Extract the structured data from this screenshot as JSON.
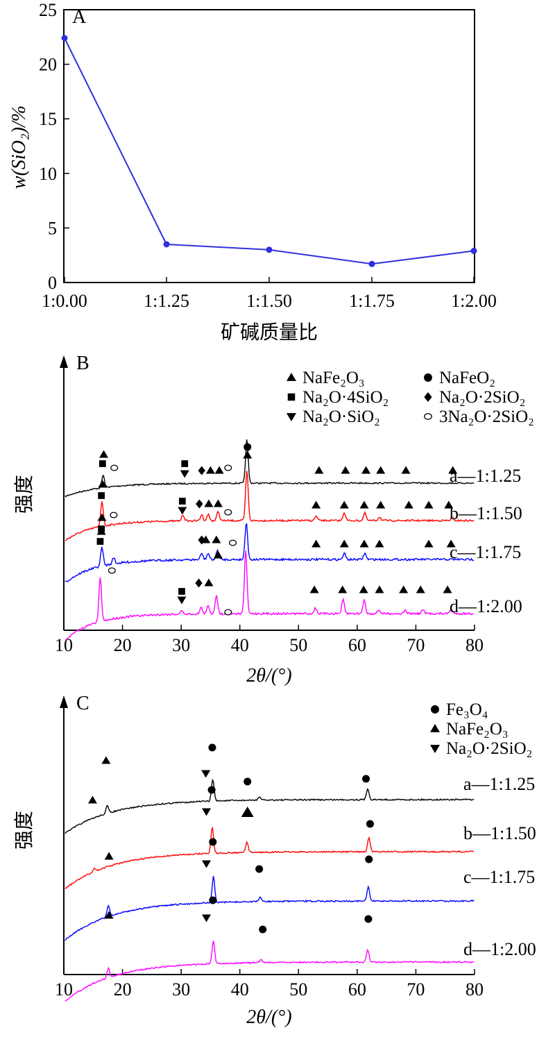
{
  "colors": {
    "black": "#000000",
    "red": "#ff0000",
    "blue": "#0000ff",
    "magenta": "#ff00ff",
    "line_a": "#2f2fe0"
  },
  "chart_data": [
    {
      "type": "line",
      "panel": "A",
      "xlabel": "矿碱质量比",
      "ylabel": "w(SiO₂)/%",
      "categories": [
        "1:0.00",
        "1:1.25",
        "1:1.50",
        "1:1.75",
        "1:2.00"
      ],
      "values": [
        22.4,
        3.5,
        3.0,
        1.7,
        2.9
      ],
      "ylim": [
        0,
        25
      ],
      "yticks": [
        "0",
        "5",
        "10",
        "15",
        "20",
        "25"
      ],
      "grid": false
    },
    {
      "type": "line",
      "panel": "B",
      "xlabel": "2θ/(°)",
      "ylabel": "强度",
      "xlim": [
        10,
        80
      ],
      "xticks": [
        "10",
        "20",
        "30",
        "40",
        "50",
        "60",
        "70",
        "80"
      ],
      "legend": [
        {
          "symbol": "triangle",
          "label": "NaFe₂O₃"
        },
        {
          "symbol": "circle",
          "label": "NaFeO₂"
        },
        {
          "symbol": "square",
          "label": "Na₂O·4SiO₂"
        },
        {
          "symbol": "diamond",
          "label": "Na₂O·2SiO₂"
        },
        {
          "symbol": "triangle-down",
          "label": "Na₂O·SiO₂"
        },
        {
          "symbol": "open-circle",
          "label": "3Na₂O·2SiO₂"
        }
      ],
      "series": [
        {
          "name": "a—1:1.25",
          "color": "#000000",
          "baseline": 0.0,
          "peaks": [
            [
              16.7,
              2
            ],
            [
              41.2,
              7
            ]
          ]
        },
        {
          "name": "b—1:1.50",
          "color": "#ff0000",
          "baseline": 0.0,
          "peaks": [
            [
              16.5,
              4
            ],
            [
              30.3,
              1
            ],
            [
              33.5,
              1
            ],
            [
              34.6,
              1
            ],
            [
              36.3,
              1.5
            ],
            [
              41.2,
              8
            ],
            [
              53.0,
              0.7
            ],
            [
              57.8,
              1.3
            ],
            [
              61.3,
              1.2
            ],
            [
              63.8,
              0.6
            ],
            [
              76.2,
              0.5
            ]
          ]
        },
        {
          "name": "c—1:1.75",
          "color": "#0000ff",
          "baseline": 0.0,
          "peaks": [
            [
              16.5,
              3
            ],
            [
              18.5,
              1
            ],
            [
              33.5,
              1
            ],
            [
              34.6,
              1
            ],
            [
              36.2,
              1.5
            ],
            [
              41.1,
              6
            ],
            [
              57.8,
              1
            ],
            [
              61.3,
              1
            ]
          ]
        },
        {
          "name": "d—1:2.00",
          "color": "#ff00ff",
          "baseline": 0.0,
          "peaks": [
            [
              16.2,
              7
            ],
            [
              30.1,
              0.5
            ],
            [
              33.4,
              1
            ],
            [
              34.6,
              1.3
            ],
            [
              36.0,
              3
            ],
            [
              41.0,
              10
            ],
            [
              52.9,
              0.9
            ],
            [
              57.6,
              2.2
            ],
            [
              61.2,
              2.2
            ],
            [
              63.7,
              0.6
            ],
            [
              68.2,
              0.5
            ],
            [
              71.2,
              0.6
            ],
            [
              76.0,
              0.7
            ]
          ]
        }
      ],
      "markers": [
        {
          "series": 0,
          "items": [
            [
              "triangle",
              16.8
            ],
            [
              "square",
              16.6
            ],
            [
              "open-circle",
              18.6
            ],
            [
              "square",
              30.6
            ],
            [
              "triangle-down",
              30.6
            ],
            [
              "diamond",
              33.5
            ],
            [
              "triangle",
              35.0
            ],
            [
              "triangle",
              36.5
            ],
            [
              "open-circle",
              38.0
            ],
            [
              "circle",
              41.3
            ],
            [
              "triangle",
              41.3
            ],
            [
              "triangle",
              53.5
            ],
            [
              "triangle",
              58.0
            ],
            [
              "triangle",
              61.5
            ],
            [
              "triangle",
              64.0
            ],
            [
              "triangle",
              68.3
            ],
            [
              "triangle",
              76.3
            ]
          ]
        },
        {
          "series": 1,
          "items": [
            [
              "triangle",
              16.6
            ],
            [
              "square",
              16.4
            ],
            [
              "square",
              30.2
            ],
            [
              "triangle-down",
              30.2
            ],
            [
              "diamond",
              33.1
            ],
            [
              "triangle",
              34.7
            ],
            [
              "triangle",
              36.3
            ],
            [
              "open-circle",
              38.0
            ],
            [
              "triangle",
              53.0
            ],
            [
              "triangle",
              57.8
            ],
            [
              "triangle",
              61.2
            ],
            [
              "triangle",
              64.0
            ],
            [
              "triangle",
              68.8
            ],
            [
              "triangle",
              72.2
            ],
            [
              "triangle",
              75.6
            ]
          ]
        },
        {
          "series": 2,
          "items": [
            [
              "triangle",
              16.5
            ],
            [
              "square",
              16.4
            ],
            [
              "open-circle",
              18.5
            ],
            [
              "diamond",
              33.5
            ],
            [
              "triangle",
              34.2
            ],
            [
              "triangle",
              36.0
            ],
            [
              "open-circle",
              38.8
            ],
            [
              "triangle",
              53.0
            ],
            [
              "triangle",
              57.8
            ],
            [
              "triangle",
              61.2
            ],
            [
              "triangle",
              63.8
            ],
            [
              "triangle",
              72.2
            ],
            [
              "triangle",
              76.0
            ]
          ]
        },
        {
          "series": 3,
          "items": [
            [
              "triangle",
              16.4
            ],
            [
              "square",
              16.2
            ],
            [
              "open-circle",
              18.2
            ],
            [
              "square",
              30.1
            ],
            [
              "triangle-down",
              30.1
            ],
            [
              "diamond",
              33.0
            ],
            [
              "triangle",
              34.7
            ],
            [
              "triangle",
              36.3
            ],
            [
              "open-circle",
              38.0
            ],
            [
              "triangle",
              52.7
            ],
            [
              "triangle",
              57.5
            ],
            [
              "triangle",
              61.1
            ],
            [
              "triangle",
              63.8
            ],
            [
              "triangle",
              67.9
            ],
            [
              "triangle",
              70.8
            ],
            [
              "triangle",
              75.4
            ]
          ]
        }
      ]
    },
    {
      "type": "line",
      "panel": "C",
      "xlabel": "2θ/(°)",
      "ylabel": "强度",
      "xlim": [
        10,
        80
      ],
      "xticks": [
        "10",
        "20",
        "30",
        "40",
        "50",
        "60",
        "70",
        "80"
      ],
      "legend": [
        {
          "symbol": "circle",
          "label": "Fe₃O₄"
        },
        {
          "symbol": "triangle",
          "label": "NaFe₂O₃"
        },
        {
          "symbol": "triangle-down",
          "label": "Na₂O·2SiO₂"
        }
      ],
      "series": [
        {
          "name": "a—1:1.25",
          "color": "#000000",
          "peaks": [
            [
              17.4,
              1.2
            ],
            [
              35.4,
              3.5
            ],
            [
              43.3,
              0.5
            ],
            [
              61.8,
              1.8
            ]
          ]
        },
        {
          "name": "b—1:1.50",
          "color": "#ff0000",
          "peaks": [
            [
              15.2,
              0.5
            ],
            [
              35.3,
              4.2
            ],
            [
              41.2,
              1.6
            ],
            [
              62.0,
              2.2
            ]
          ]
        },
        {
          "name": "c—1:1.75",
          "color": "#0000ff",
          "peaks": [
            [
              17.6,
              1.8
            ],
            [
              35.5,
              4.2
            ],
            [
              43.5,
              0.7
            ],
            [
              61.9,
              2.2
            ]
          ]
        },
        {
          "name": "d—1:2.00",
          "color": "#ff00ff",
          "peaks": [
            [
              17.6,
              1.5
            ],
            [
              35.5,
              3.6
            ],
            [
              43.6,
              0.5
            ],
            [
              61.8,
              2.0
            ]
          ]
        }
      ],
      "markers": [
        {
          "series": 0,
          "items": [
            [
              "triangle",
              17.2
            ],
            [
              "circle",
              35.3
            ],
            [
              "triangle-down",
              34.2
            ],
            [
              "circle",
              41.3
            ],
            [
              "circle",
              61.5
            ]
          ]
        },
        {
          "series": 1,
          "items": [
            [
              "triangle",
              14.9
            ],
            [
              "circle",
              35.2
            ],
            [
              "triangle-down",
              34.3
            ],
            [
              "triangle-big",
              41.3
            ],
            [
              "circle",
              62.2
            ]
          ]
        },
        {
          "series": 2,
          "items": [
            [
              "triangle",
              17.7
            ],
            [
              "circle",
              35.4
            ],
            [
              "triangle-down",
              34.3
            ],
            [
              "circle",
              43.3
            ],
            [
              "circle",
              62.0
            ]
          ]
        },
        {
          "series": 3,
          "items": [
            [
              "triangle",
              17.7
            ],
            [
              "circle",
              35.4
            ],
            [
              "triangle-down",
              34.3
            ],
            [
              "circle",
              43.9
            ],
            [
              "circle",
              61.9
            ]
          ]
        }
      ]
    }
  ],
  "panel_labels": [
    "A",
    "B",
    "C"
  ]
}
